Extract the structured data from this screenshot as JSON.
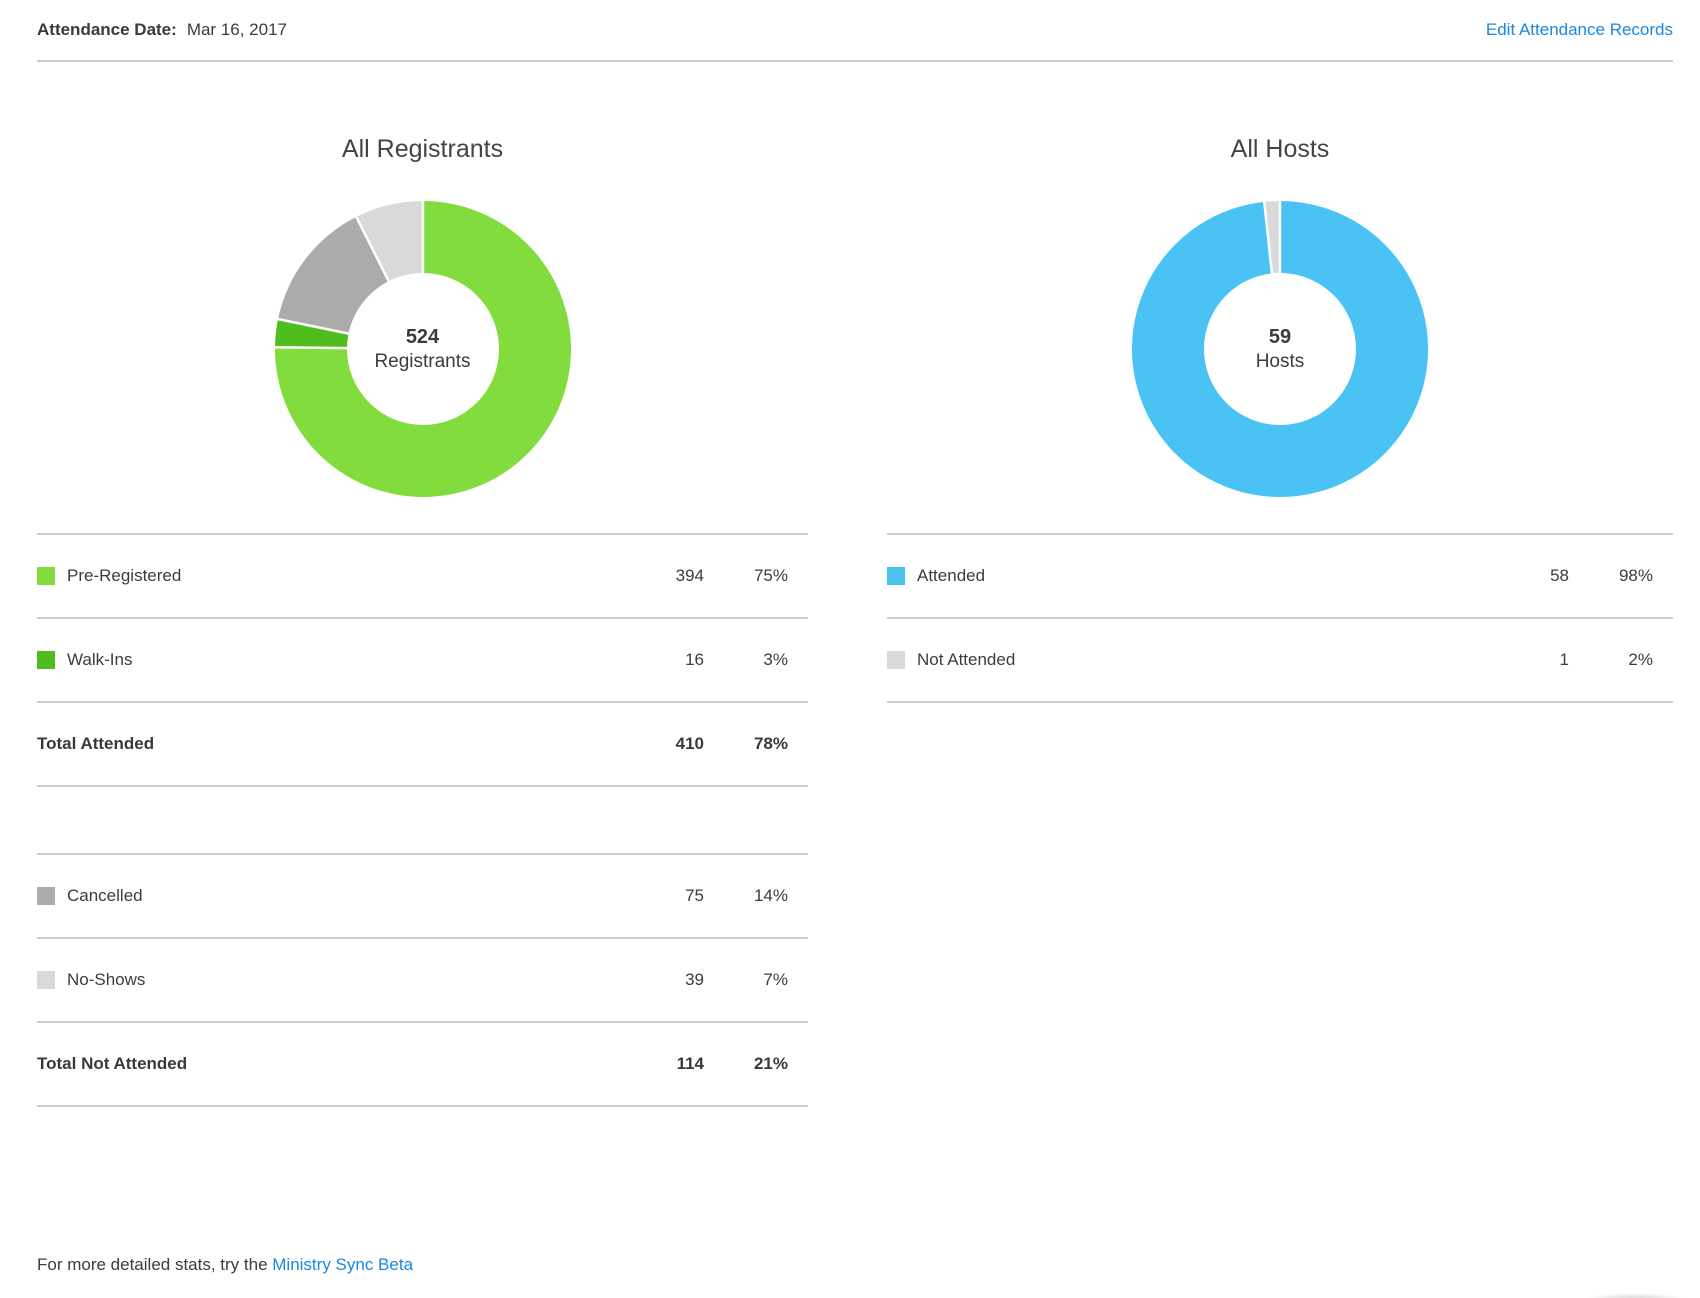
{
  "header": {
    "label": "Attendance Date:",
    "date": "Mar 16, 2017",
    "edit_link": "Edit Attendance Records"
  },
  "footer": {
    "text": "For more detailed stats, try the ",
    "link": "Ministry Sync Beta"
  },
  "colors": {
    "pre_registered_green": "#82DC3E",
    "walk_ins_green": "#50BD1E",
    "cancelled_gray": "#ABABAB",
    "no_shows_gray": "#D9D9D9",
    "attended_blue": "#4AC3F4",
    "link_blue": "#1B87E0",
    "divider_gray": "#CDCDCD"
  },
  "chart_data": [
    {
      "type": "pie",
      "donut": true,
      "title": "All Registrants",
      "center_value": "524",
      "center_label": "Registrants",
      "legend_position": "bottom-table",
      "segments": [
        {
          "label": "Pre-Registered",
          "value": 394,
          "pct": "75%",
          "color": "#82DC3E"
        },
        {
          "label": "Walk-Ins",
          "value": 16,
          "pct": "3%",
          "color": "#50BD1E"
        },
        {
          "label": "Cancelled",
          "value": 75,
          "pct": "14%",
          "color": "#ABABAB"
        },
        {
          "label": "No-Shows",
          "value": 39,
          "pct": "7%",
          "color": "#D9D9D9"
        }
      ],
      "table": [
        {
          "type": "item",
          "label": "Pre-Registered",
          "count": "394",
          "pct": "75%",
          "color": "#82DC3E"
        },
        {
          "type": "item",
          "label": "Walk-Ins",
          "count": "16",
          "pct": "3%",
          "color": "#50BD1E"
        },
        {
          "type": "total",
          "label": "Total Attended",
          "count": "410",
          "pct": "78%"
        },
        {
          "type": "spacer"
        },
        {
          "type": "item",
          "label": "Cancelled",
          "count": "75",
          "pct": "14%",
          "color": "#ABABAB"
        },
        {
          "type": "item",
          "label": "No-Shows",
          "count": "39",
          "pct": "7%",
          "color": "#D9D9D9"
        },
        {
          "type": "total",
          "label": "Total Not Attended",
          "count": "114",
          "pct": "21%"
        }
      ]
    },
    {
      "type": "pie",
      "donut": true,
      "title": "All Hosts",
      "center_value": "59",
      "center_label": "Hosts",
      "legend_position": "bottom-table",
      "segments": [
        {
          "label": "Attended",
          "value": 58,
          "pct": "98%",
          "color": "#4AC3F4"
        },
        {
          "label": "Not Attended",
          "value": 1,
          "pct": "2%",
          "color": "#D9D9D9"
        }
      ],
      "table": [
        {
          "type": "item",
          "label": "Attended",
          "count": "58",
          "pct": "98%",
          "color": "#4AC3F4"
        },
        {
          "type": "item",
          "label": "Not Attended",
          "count": "1",
          "pct": "2%",
          "color": "#D9D9D9"
        }
      ]
    }
  ]
}
